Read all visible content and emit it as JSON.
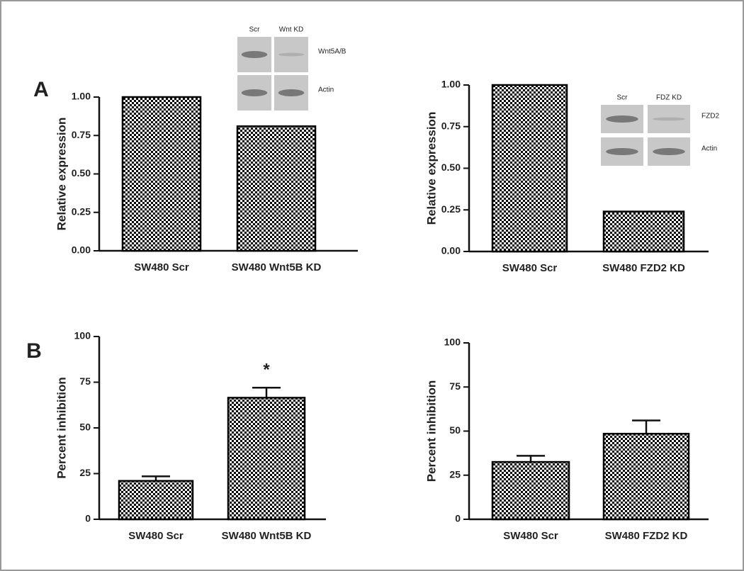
{
  "chart_data": [
    {
      "type": "bar",
      "panel_label": "A",
      "ylabel": "Relative expression",
      "categories": [
        "SW480 Scr",
        "SW480  Wnt5B KD"
      ],
      "values": [
        1.0,
        0.81
      ],
      "color": "#000000",
      "ylim": [
        0,
        1
      ],
      "yticks": [
        {
          "value": 0,
          "label": "0.00"
        },
        {
          "value": 0.25,
          "label": "0.25"
        },
        {
          "value": 0.5,
          "label": "0.50"
        },
        {
          "value": 0.75,
          "label": "0.75"
        },
        {
          "value": 1,
          "label": "1.00"
        }
      ],
      "blot": {
        "lanes": [
          "Scr",
          "Wnt KD"
        ],
        "rows": [
          "Wnt5A/B",
          "Actin"
        ]
      }
    },
    {
      "type": "bar",
      "ylabel": "Relative expression",
      "categories": [
        "SW480 Scr",
        "SW480 FZD2 KD"
      ],
      "values": [
        1.0,
        0.24
      ],
      "color": "#000000",
      "ylim": [
        0,
        1
      ],
      "yticks": [
        {
          "value": 0,
          "label": "0.00"
        },
        {
          "value": 0.25,
          "label": "0.25"
        },
        {
          "value": 0.5,
          "label": "0.50"
        },
        {
          "value": 0.75,
          "label": "0.75"
        },
        {
          "value": 1,
          "label": "1.00"
        }
      ],
      "blot": {
        "lanes": [
          "Scr",
          "FDZ KD"
        ],
        "rows": [
          "FZD2",
          "Actin"
        ]
      }
    },
    {
      "type": "bar",
      "panel_label": "B",
      "ylabel": "Percent inhibition",
      "categories": [
        "SW480 Scr",
        "SW480 Wnt5B KD"
      ],
      "values": [
        21,
        66.5
      ],
      "errors": [
        2.5,
        5.5
      ],
      "color": "#000000",
      "annotation": "*",
      "ylim": [
        0,
        100
      ],
      "yticks": [
        0,
        25,
        50,
        75,
        100
      ]
    },
    {
      "type": "bar",
      "ylabel": "Percent inhibition",
      "categories": [
        "SW480 Scr",
        "SW480 FZD2 KD"
      ],
      "values": [
        32.5,
        48.5
      ],
      "errors": [
        3.5,
        7.5
      ],
      "color": "#000000",
      "ylim": [
        0,
        100
      ],
      "yticks": [
        0,
        25,
        50,
        75,
        100
      ]
    }
  ]
}
